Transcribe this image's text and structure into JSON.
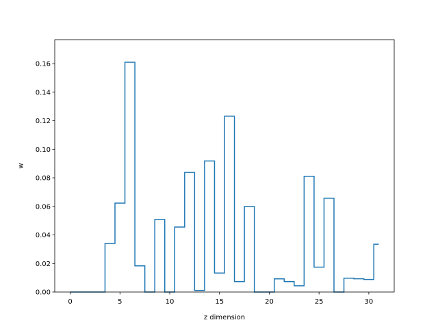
{
  "chart_data": {
    "type": "line",
    "style": "step",
    "x": [
      0,
      1,
      2,
      3,
      4,
      5,
      6,
      7,
      8,
      9,
      10,
      11,
      12,
      13,
      14,
      15,
      16,
      17,
      18,
      19,
      20,
      21,
      22,
      23,
      24,
      25,
      26,
      27,
      28,
      29,
      30,
      31
    ],
    "y": [
      0.0,
      0.0,
      0.0,
      0.0,
      0.034,
      0.0623,
      0.161,
      0.0183,
      0.0,
      0.0508,
      0.0,
      0.0455,
      0.0838,
      0.0011,
      0.0918,
      0.0133,
      0.1232,
      0.0073,
      0.0599,
      0.0,
      0.0,
      0.0092,
      0.0073,
      0.0044,
      0.0811,
      0.0174,
      0.0657,
      0.0,
      0.0097,
      0.0093,
      0.0088,
      0.0335
    ],
    "xlabel": "z dimension",
    "ylabel": "w",
    "xlim": [
      -1.55,
      32.55
    ],
    "ylim": [
      0.0,
      0.1768
    ],
    "xticks": [
      0,
      5,
      10,
      15,
      20,
      25,
      30
    ],
    "xtick_labels": [
      "0",
      "5",
      "10",
      "15",
      "20",
      "25",
      "30"
    ],
    "yticks": [
      0.0,
      0.02,
      0.04,
      0.06,
      0.08,
      0.1,
      0.12,
      0.14,
      0.16
    ],
    "ytick_labels": [
      "0.00",
      "0.02",
      "0.04",
      "0.06",
      "0.08",
      "0.10",
      "0.12",
      "0.14",
      "0.16"
    ],
    "grid": false,
    "line_color": "#1f77b4"
  }
}
